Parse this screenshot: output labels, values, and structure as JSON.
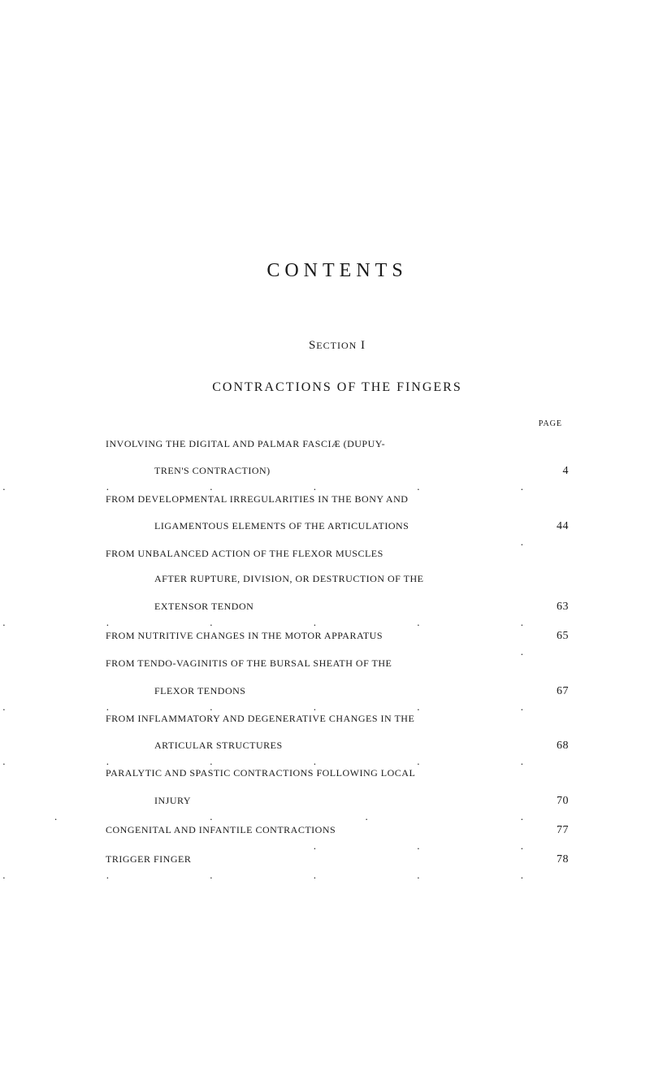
{
  "title": "CONTENTS",
  "section_label": "Section I",
  "section_title": "CONTRACTIONS OF THE FINGERS",
  "page_header": "PAGE",
  "entries": [
    {
      "lines": [
        "INVOLVING THE DIGITAL AND PALMAR FASCIÆ (DUPUY-",
        "TREN'S CONTRACTION)"
      ],
      "indent_last": true,
      "page": "4"
    },
    {
      "lines": [
        "FROM DEVELOPMENTAL IRREGULARITIES IN THE BONY AND",
        "LIGAMENTOUS ELEMENTS OF THE ARTICULATIONS"
      ],
      "indent_last": true,
      "page": "44"
    },
    {
      "lines": [
        "FROM UNBALANCED ACTION OF THE FLEXOR MUSCLES",
        "AFTER RUPTURE, DIVISION, OR DESTRUCTION OF THE",
        "EXTENSOR TENDON"
      ],
      "indent_last": true,
      "indent_middle": true,
      "page": "63"
    },
    {
      "lines": [
        "FROM NUTRITIVE CHANGES IN THE MOTOR APPARATUS"
      ],
      "page": "65"
    },
    {
      "lines": [
        "FROM TENDO-VAGINITIS OF THE BURSAL SHEATH OF THE",
        "FLEXOR TENDONS"
      ],
      "indent_last": true,
      "page": "67"
    },
    {
      "lines": [
        "FROM INFLAMMATORY AND DEGENERATIVE CHANGES IN THE",
        "ARTICULAR STRUCTURES"
      ],
      "indent_last": true,
      "page": "68"
    },
    {
      "lines": [
        "PARALYTIC AND SPASTIC CONTRACTIONS FOLLOWING LOCAL",
        "INJURY"
      ],
      "indent_last": true,
      "page": "70"
    },
    {
      "lines": [
        "CONGENITAL AND INFANTILE CONTRACTIONS"
      ],
      "page": "77"
    },
    {
      "lines": [
        "TRIGGER FINGER"
      ],
      "page": "78"
    }
  ]
}
